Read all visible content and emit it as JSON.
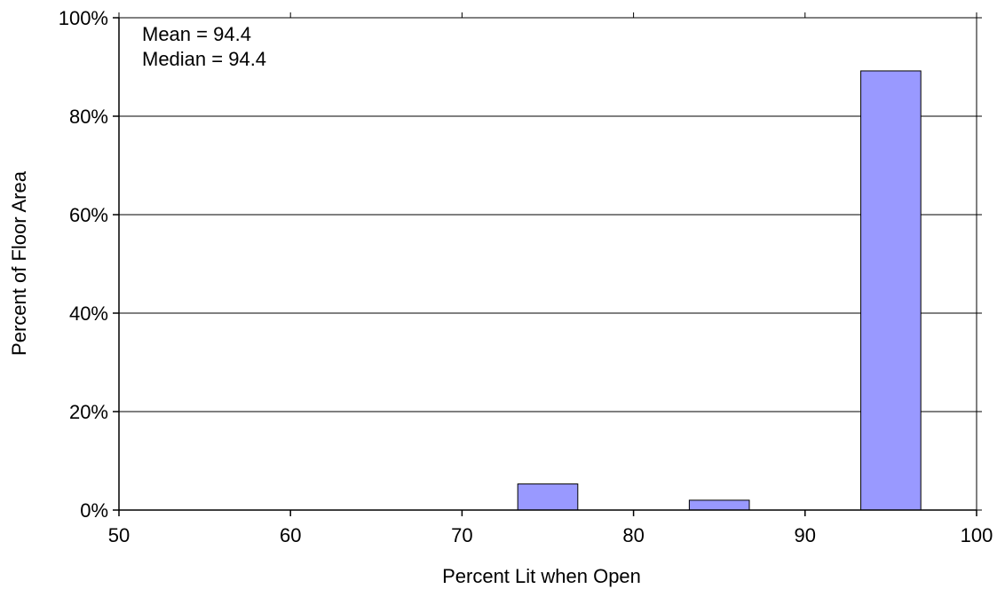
{
  "chart_data": {
    "type": "bar",
    "title": "",
    "xlabel": "Percent Lit when Open",
    "ylabel": "Percent of Floor Area",
    "xlim": [
      50,
      100
    ],
    "ylim": [
      0,
      100
    ],
    "x_ticks": [
      50,
      60,
      70,
      80,
      90,
      100
    ],
    "y_ticks": [
      0,
      20,
      40,
      60,
      80,
      100
    ],
    "y_tick_labels": [
      "0%",
      "20%",
      "40%",
      "60%",
      "80%",
      "100%"
    ],
    "bin_width": 3.5,
    "bars": [
      {
        "center": 75,
        "value": 5.3
      },
      {
        "center": 85,
        "value": 2.0
      },
      {
        "center": 95,
        "value": 89.2
      }
    ],
    "annotations": [
      "Mean = 94.4",
      "Median = 94.4"
    ],
    "grid": "horizontal",
    "colors": {
      "bar_fill": "#9999ff",
      "bar_stroke": "#000000",
      "grid": "#000000",
      "axis": "#000000"
    }
  }
}
